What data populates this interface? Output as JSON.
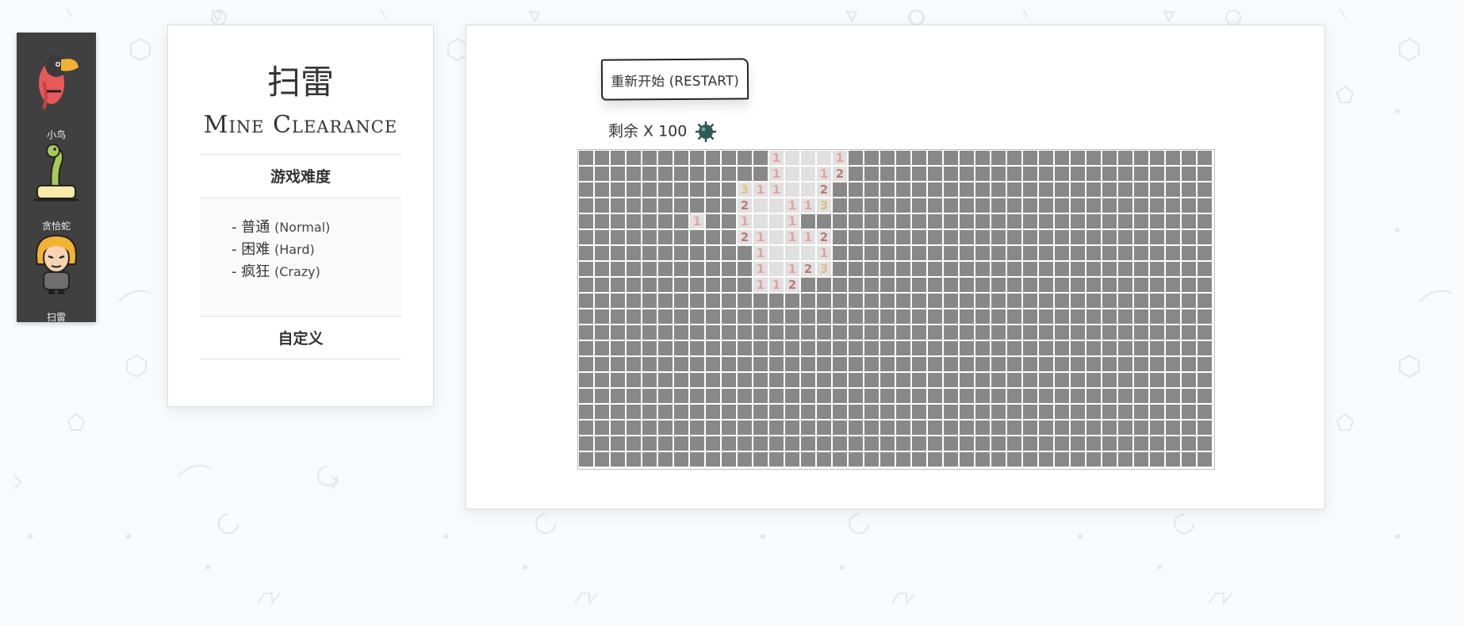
{
  "sidebar": {
    "items": [
      {
        "label": "小鸟",
        "icon": "toucan-icon"
      },
      {
        "label": "贪恰蛇",
        "icon": "snake-icon"
      },
      {
        "label": "扫雷",
        "icon": "minesweeper-character-icon"
      }
    ]
  },
  "menu": {
    "title_zh": "扫雷",
    "title_en": "Mine Clearance",
    "difficulty_heading": "游戏难度",
    "levels": [
      {
        "zh": "- 普通",
        "en": "(Normal)"
      },
      {
        "zh": "- 困难",
        "en": "(Hard)"
      },
      {
        "zh": "- 疯狂",
        "en": "(Crazy)"
      }
    ],
    "custom_label": "自定义"
  },
  "game": {
    "restart_label": "重新开始 (RESTART)",
    "remaining_label": "剩余 X 100",
    "remaining_count": 100,
    "board": {
      "rows": 20,
      "cols": 40,
      "rows_map": [
        "............1...1.......................",
        "............1..12.......................",
        "..........311..2........................",
        "..........2..113........................",
        ".......1..1..1..........................",
        "..........21.112........................",
        "...........1...1........................",
        "...........1.123........................",
        "...........112..........................",
        "........................................",
        "........................................",
        "........................................",
        "........................................",
        "........................................",
        "........................................",
        "........................................",
        "........................................",
        "........................................",
        "........................................",
        "........................................"
      ],
      "open_map": [
        "............OOOOO.......................",
        "............OOOOO.......................",
        "..........OOOOOO........................",
        "..........OOOOOO........................",
        ".......O..OOOO..........................",
        "..........OOOOOO........................",
        "...........OOOOO........................",
        "...........OOOOO........................",
        "...........OOO..........................",
        "........................................",
        "........................................",
        "........................................",
        "........................................",
        "........................................",
        "........................................",
        "........................................",
        "........................................",
        "........................................",
        "........................................",
        "........................................"
      ]
    },
    "colors": {
      "closed": "#888888",
      "open": "#e0e0e0",
      "n1": "#e8a0a0",
      "n2": "#c07878",
      "n3": "#e0c080"
    }
  }
}
